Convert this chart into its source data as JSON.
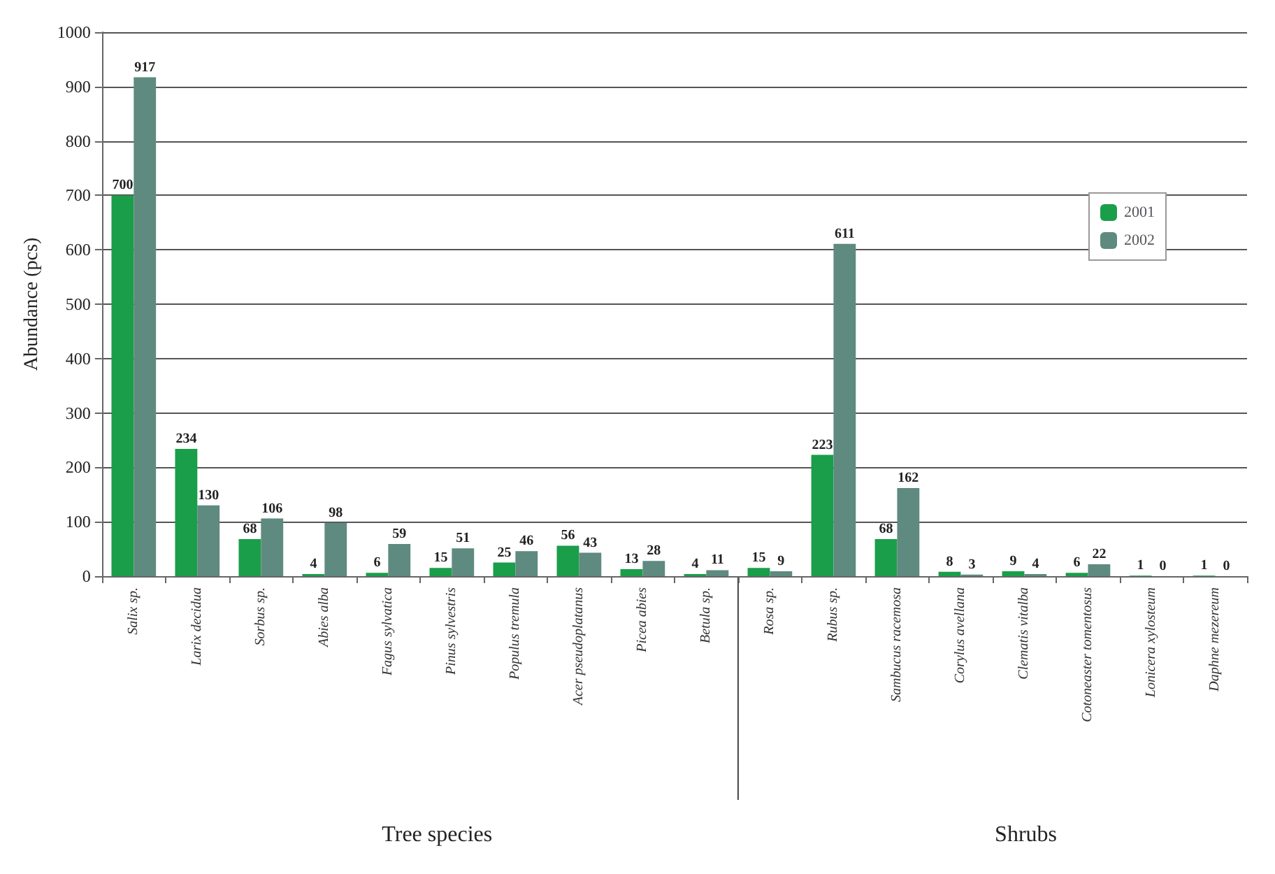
{
  "chart_data": {
    "type": "bar",
    "ylabel": "Abundance (pcs)",
    "categories": [
      "Salix sp.",
      "Larix decidua",
      "Sorbus sp.",
      "Abies alba",
      "Fagus sylvatica",
      "Pinus sylvestris",
      "Populus tremula",
      "Acer pseudoplatanus",
      "Picea abies",
      "Betula sp.",
      "Rosa sp.",
      "Rubus sp.",
      "Sambucus racemosa",
      "Corylus avellana",
      "Clematis vitalba",
      "Cotoneaster tomentosus",
      "Lonicera xylosteum",
      "Daphne mezereum"
    ],
    "series": [
      {
        "name": "2001",
        "color": "#1a9e4a",
        "values": [
          700,
          234,
          68,
          4,
          6,
          15,
          25,
          56,
          13,
          4,
          15,
          223,
          68,
          8,
          9,
          6,
          1,
          1
        ]
      },
      {
        "name": "2002",
        "color": "#5f8a80",
        "values": [
          917,
          130,
          106,
          98,
          59,
          51,
          46,
          43,
          28,
          11,
          9,
          611,
          162,
          3,
          4,
          22,
          0,
          0
        ]
      }
    ],
    "ylim": [
      0,
      1000
    ],
    "yticks": [
      0,
      100,
      200,
      300,
      400,
      500,
      600,
      700,
      800,
      900,
      1000
    ],
    "grid": "y",
    "legend": "top right",
    "data_labels": true,
    "annotations": [
      "Tree species",
      "Shrubs"
    ]
  }
}
